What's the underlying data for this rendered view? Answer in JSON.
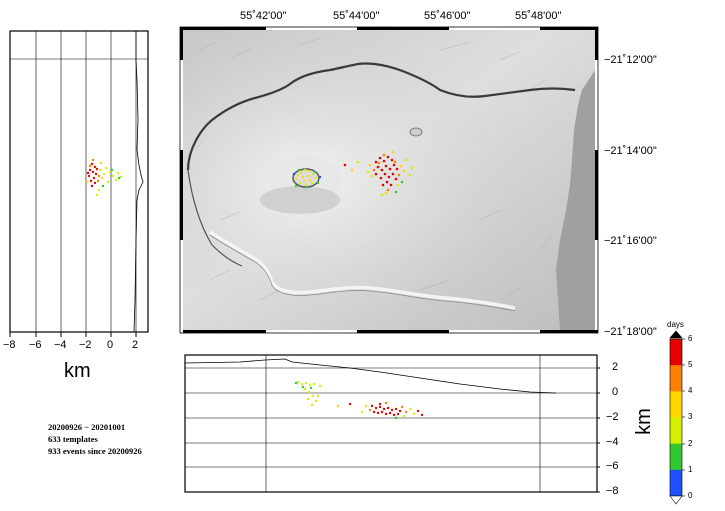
{
  "map": {
    "lon_labels": [
      "55˚42'00\"",
      "55˚44'00\"",
      "55˚46'00\"",
      "55˚48'00\""
    ],
    "lat_labels": [
      "−21˚12'00\"",
      "−21˚14'00\"",
      "−21˚16'00\"",
      "−21˚18'00\""
    ]
  },
  "ew_section": {
    "x_ticks": [
      "−8",
      "−6",
      "−4",
      "−2",
      "0",
      "2"
    ],
    "xlabel": "km"
  },
  "ns_section": {
    "y_ticks": [
      "2",
      "0",
      "−2",
      "−4",
      "−6",
      "−8"
    ],
    "ylabel": "km"
  },
  "info": {
    "line1": "20200926 − 20201001",
    "line2": "633  templates",
    "line3": "933 events since 20200926"
  },
  "colorbar": {
    "title": "days",
    "ticks": [
      "6",
      "5",
      "4",
      "3",
      "2",
      "1",
      "0"
    ],
    "colors": [
      "#e60000",
      "#ff7f00",
      "#ffd700",
      "#d4f000",
      "#32c832",
      "#1e50ff"
    ]
  }
}
